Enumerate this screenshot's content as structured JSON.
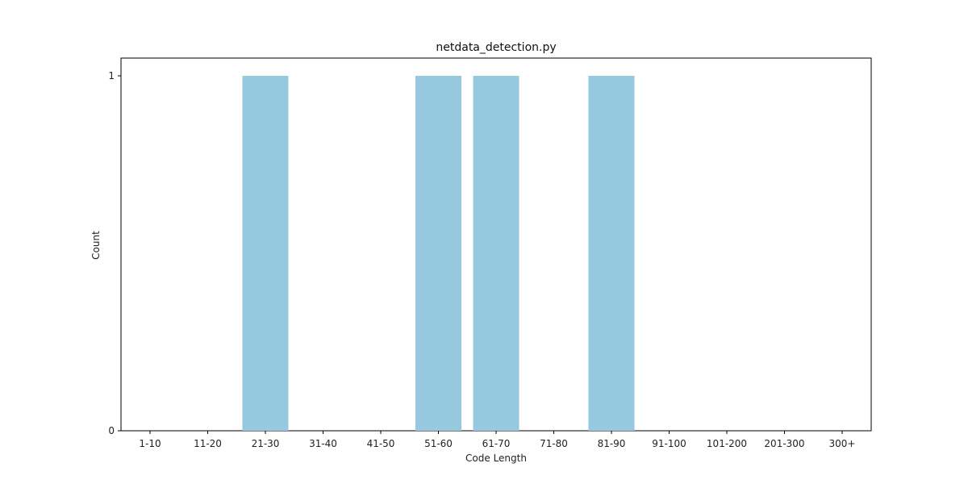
{
  "chart_data": {
    "type": "bar",
    "title": "netdata_detection.py",
    "xlabel": "Code Length",
    "ylabel": "Count",
    "categories": [
      "1-10",
      "11-20",
      "21-30",
      "31-40",
      "41-50",
      "51-60",
      "61-70",
      "71-80",
      "81-90",
      "91-100",
      "101-200",
      "201-300",
      "300+"
    ],
    "values": [
      0,
      0,
      1,
      0,
      0,
      1,
      1,
      0,
      1,
      0,
      0,
      0,
      0
    ],
    "ylim": [
      0,
      1
    ],
    "yticks": [
      0,
      1
    ],
    "grid": false,
    "bar_color": "#96c9dd"
  }
}
